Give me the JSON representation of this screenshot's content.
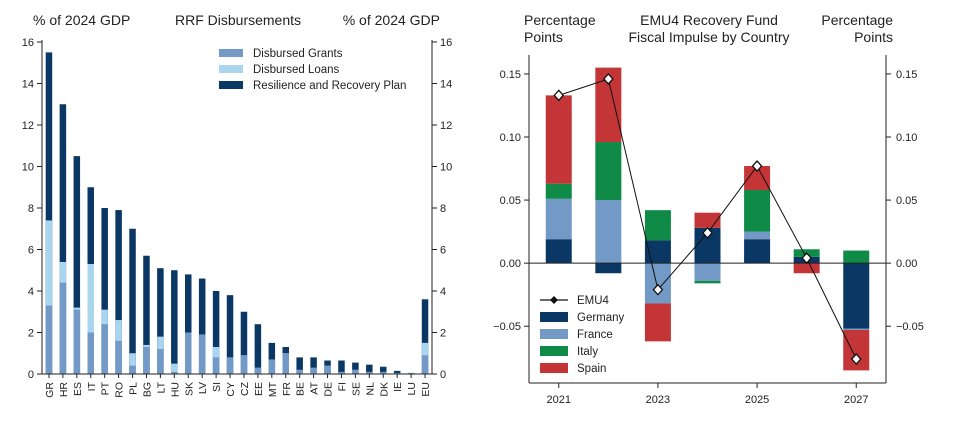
{
  "chart_data": [
    {
      "type": "bar",
      "title": "RRF Disbursements",
      "ylabel_left": "% of 2024 GDP",
      "ylabel_right": "% of 2024 GDP",
      "ylim": [
        0,
        16
      ],
      "yticks": [
        "0",
        "2",
        "4",
        "6",
        "8",
        "10",
        "12",
        "14",
        "16"
      ],
      "legend": {
        "position": "top-right",
        "entries": [
          {
            "name": "Disbursed Grants",
            "color": "#7399c6"
          },
          {
            "name": "Disbursed Loans",
            "color": "#a9d5ef"
          },
          {
            "name": "Resilience and Recovery Plan",
            "color": "#0b3765"
          }
        ]
      },
      "categories": [
        "GR",
        "HR",
        "ES",
        "IT",
        "PT",
        "RO",
        "PL",
        "BG",
        "LT",
        "HU",
        "SK",
        "LV",
        "SI",
        "CY",
        "CZ",
        "EE",
        "MT",
        "FR",
        "BE",
        "AT",
        "DE",
        "FI",
        "SE",
        "NL",
        "DK",
        "IE",
        "LU",
        "EU"
      ],
      "series": [
        {
          "name": "Disbursed Grants",
          "values": [
            3.3,
            4.4,
            3.1,
            2.0,
            2.4,
            1.6,
            0.4,
            1.3,
            1.2,
            0.1,
            2.0,
            1.9,
            0.8,
            0.8,
            0.9,
            0.3,
            0.7,
            1.0,
            0.2,
            0.3,
            0.4,
            0.1,
            0.2,
            0.1,
            0.1,
            0.05,
            0.05,
            0.9
          ]
        },
        {
          "name": "Disbursed Loans",
          "values": [
            7.4,
            5.4,
            3.2,
            5.3,
            3.1,
            2.6,
            1.0,
            1.4,
            1.8,
            0.5,
            2.0,
            1.9,
            1.3,
            0.8,
            0.9,
            0.3,
            0.7,
            1.0,
            0.2,
            0.3,
            0.4,
            0.1,
            0.2,
            0.1,
            0.1,
            0.05,
            0.05,
            1.5
          ]
        },
        {
          "name": "Resilience and Recovery Plan",
          "values": [
            15.5,
            13.0,
            10.5,
            9.0,
            8.0,
            7.9,
            7.0,
            5.7,
            5.1,
            5.0,
            4.8,
            4.6,
            4.0,
            3.8,
            3.0,
            2.4,
            1.5,
            1.3,
            0.8,
            0.8,
            0.65,
            0.65,
            0.55,
            0.45,
            0.35,
            0.15,
            0.05,
            3.6
          ]
        }
      ]
    },
    {
      "type": "bar",
      "subtype": "stacked-with-line",
      "title": "EMU4 Recovery Fund\nFiscal Impulse by Country",
      "title_lines": [
        "EMU4 Recovery Fund",
        "Fiscal Impulse by Country"
      ],
      "ylabel_left_lines": [
        "Percentage",
        "Points"
      ],
      "ylabel_right_lines": [
        "Percentage",
        "Points"
      ],
      "ylim": [
        -0.095,
        0.165
      ],
      "yticks": [
        {
          "value": -0.05,
          "label_left": "−0.05",
          "label_right": "−0.05"
        },
        {
          "value": 0.0,
          "label_left": "0.00",
          "label_right": "0.00"
        },
        {
          "value": 0.05,
          "label_left": "0.05",
          "label_right": "0.05"
        },
        {
          "value": 0.1,
          "label_left": "0.10",
          "label_right": "0.10"
        },
        {
          "value": 0.15,
          "label_left": "0.15",
          "label_right": "0.15"
        }
      ],
      "x": [
        2021,
        2022,
        2023,
        2024,
        2025,
        2026,
        2027
      ],
      "xticks": [
        "2021",
        "2023",
        "2025",
        "2027"
      ],
      "legend": {
        "position": "bottom-left",
        "entries": [
          {
            "name": "EMU4",
            "color": "#111111",
            "kind": "line"
          },
          {
            "name": "Germany",
            "color": "#0b3765"
          },
          {
            "name": "France",
            "color": "#7399c6"
          },
          {
            "name": "Italy",
            "color": "#108a47"
          },
          {
            "name": "Spain",
            "color": "#c33536"
          }
        ]
      },
      "series": [
        {
          "name": "Germany",
          "values": [
            0.019,
            -0.008,
            0.018,
            0.028,
            0.019,
            0.005,
            -0.052
          ]
        },
        {
          "name": "France",
          "values": [
            0.032,
            0.05,
            -0.032,
            -0.014,
            0.006,
            0.0,
            -0.001
          ]
        },
        {
          "name": "Italy",
          "values": [
            0.012,
            0.046,
            0.024,
            -0.002,
            0.033,
            0.006,
            0.01
          ]
        },
        {
          "name": "Spain",
          "values": [
            0.07,
            0.059,
            -0.03,
            0.012,
            0.019,
            -0.008,
            -0.032
          ]
        }
      ],
      "line": {
        "name": "EMU4",
        "values": [
          0.133,
          0.146,
          -0.021,
          0.024,
          0.077,
          0.004,
          -0.076
        ]
      }
    }
  ]
}
